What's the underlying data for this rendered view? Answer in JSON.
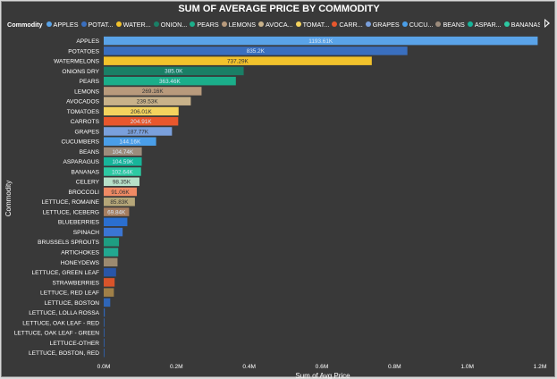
{
  "chart_data": {
    "type": "bar",
    "orientation": "horizontal",
    "title": "SUM OF AVERAGE PRICE BY COMMODITY",
    "xlabel": "Sum of Avg Price",
    "ylabel": "Commodity",
    "legend_title": "Commodity",
    "legend_position": "top",
    "legend_entries": [
      "APPLES",
      "POTAT...",
      "WATER...",
      "ONION...",
      "PEARS",
      "LEMONS",
      "AVOCA...",
      "TOMAT...",
      "CARR...",
      "GRAPES",
      "CUCU...",
      "BEANS",
      "ASPAR...",
      "BANANAS"
    ],
    "xlim": [
      0,
      1200000
    ],
    "x_ticks": [
      0,
      200000,
      400000,
      600000,
      800000,
      1000000,
      1200000
    ],
    "x_tick_labels": [
      "0.0M",
      "0.2M",
      "0.4M",
      "0.6M",
      "0.8M",
      "1.0M",
      "1.2M"
    ],
    "grid": false,
    "categories": [
      "APPLES",
      "POTATOES",
      "WATERMELONS",
      "ONIONS DRY",
      "PEARS",
      "LEMONS",
      "AVOCADOS",
      "TOMATOES",
      "CARROTS",
      "GRAPES",
      "CUCUMBERS",
      "BEANS",
      "ASPARAGUS",
      "BANANAS",
      "CELERY",
      "BROCCOLI",
      "LETTUCE, ROMAINE",
      "LETTUCE, ICEBERG",
      "BLUEBERRIES",
      "SPINACH",
      "BRUSSELS SPROUTS",
      "ARTICHOKES",
      "HONEYDEWS",
      "LETTUCE, GREEN LEAF",
      "STRAWBERRIES",
      "LETTUCE, RED LEAF",
      "LETTUCE, BOSTON",
      "LETTUCE, LOLLA ROSSA",
      "LETTUCE, OAK LEAF - RED",
      "LETTUCE, OAK LEAF - GREEN",
      "LETTUCE-OTHER",
      "LETTUCE, BOSTON, RED"
    ],
    "values": [
      1193610,
      835200,
      737290,
      385000,
      363460,
      269160,
      239530,
      206010,
      204910,
      187770,
      144160,
      104740,
      104590,
      102640,
      98350,
      91060,
      85830,
      69840,
      65000,
      52000,
      42000,
      40000,
      38000,
      34000,
      30000,
      28000,
      18000,
      3000,
      2000,
      1500,
      1200,
      1000
    ],
    "data_labels": [
      "1193.61K",
      "835.2K",
      "737.29K",
      "385.0K",
      "363.46K",
      "269.16K",
      "239.53K",
      "206.01K",
      "204.91K",
      "187.77K",
      "144.16K",
      "104.74K",
      "104.59K",
      "102.64K",
      "98.35K",
      "91.06K",
      "85.83K",
      "69.84K",
      "",
      "",
      "",
      "",
      "",
      "",
      "",
      "",
      "",
      "",
      "",
      "",
      "",
      ""
    ],
    "colors": [
      "#5aa3e8",
      "#3a6fbf",
      "#f2c22c",
      "#1a7f66",
      "#1bae8a",
      "#b89a7c",
      "#c8b28a",
      "#f4d35e",
      "#e8572d",
      "#7aa0dc",
      "#4a9ee8",
      "#9c8c7c",
      "#17b59a",
      "#2dc9a2",
      "#b7e0c8",
      "#f08a64",
      "#b5a678",
      "#a67e60",
      "#2b6fd0",
      "#3b76d4",
      "#1e9e82",
      "#22a890",
      "#9c8a70",
      "#2956a8",
      "#d9542a",
      "#a08048",
      "#2f66b8",
      "#2f66b8",
      "#2f66b8",
      "#2f66b8",
      "#2f66b8",
      "#2f66b8"
    ]
  },
  "ui": {
    "scroll_right_icon": "triangle-right-icon"
  }
}
